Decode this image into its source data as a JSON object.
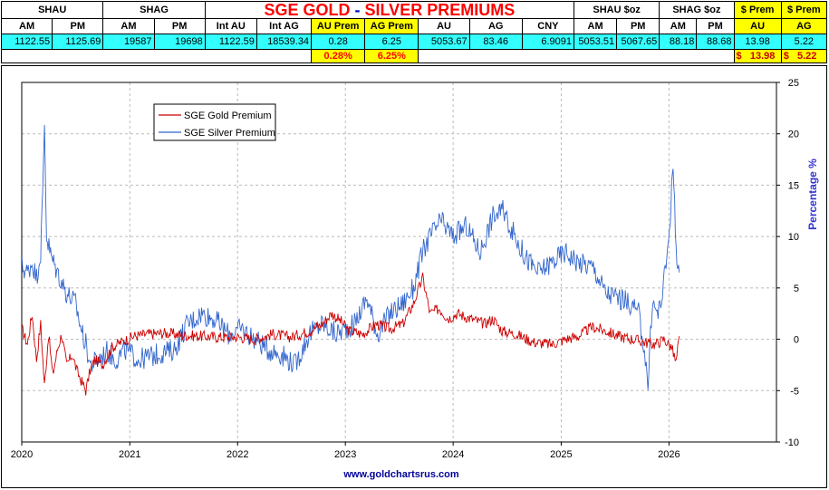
{
  "table": {
    "header1": {
      "shau": "SHAU",
      "shag": "SHAG",
      "title_gold": "SGE GOLD ",
      "title_dash": "-",
      "title_silver": " SILVER PREMIUMS",
      "shau_oz": "SHAU $oz",
      "shag_oz": "SHAG $oz",
      "prem1": "$ Prem",
      "prem2": "$ Prem"
    },
    "header2": [
      "AM",
      "PM",
      "AM",
      "PM",
      "Int AU",
      "Int AG",
      "AU Prem",
      "AG Prem",
      "AU",
      "AG",
      "CNY",
      "AM",
      "PM",
      "AM",
      "PM",
      "AU",
      "AG"
    ],
    "values": [
      "1122.55",
      "1125.69",
      "19587",
      "19698",
      "1122.59",
      "18539.34",
      "0.28",
      "6.25",
      "5053.67",
      "83.46",
      "6.9091",
      "5053.51",
      "5067.65",
      "88.18",
      "88.68",
      "13.98",
      "5.22"
    ],
    "pct_au": "0.28%",
    "pct_ag": "6.25%",
    "usd_au_sign": "$",
    "usd_au": "13.98",
    "usd_ag_sign": "$",
    "usd_ag": "5.22"
  },
  "chart_data": {
    "type": "line",
    "title": "",
    "xlabel": "",
    "ylabel": "Percentage %",
    "ylim": [
      -10,
      25
    ],
    "yticks": [
      -10,
      -5,
      0,
      5,
      10,
      15,
      20,
      25
    ],
    "xlim": [
      "2020-01-01",
      "2026-12-31"
    ],
    "xticks": [
      "2020",
      "2021",
      "2022",
      "2023",
      "2024",
      "2025",
      "2026"
    ],
    "grid": true,
    "y_axis_side": "right",
    "legend_position": "top-left",
    "footer": "www.goldchartsrus.com",
    "series": [
      {
        "name": "SGE Gold Premium",
        "color": "#cc0000",
        "points": [
          [
            "2020-01-02",
            1.0
          ],
          [
            "2020-01-20",
            -0.5
          ],
          [
            "2020-02-05",
            2.5
          ],
          [
            "2020-02-20",
            -2.0
          ],
          [
            "2020-03-05",
            1.5
          ],
          [
            "2020-03-18",
            -4.5
          ],
          [
            "2020-04-01",
            0.5
          ],
          [
            "2020-04-15",
            -3.5
          ],
          [
            "2020-05-01",
            -1.0
          ],
          [
            "2020-05-15",
            0.5
          ],
          [
            "2020-06-01",
            -2.5
          ],
          [
            "2020-06-20",
            -1.5
          ],
          [
            "2020-07-05",
            -3.0
          ],
          [
            "2020-07-20",
            -4.0
          ],
          [
            "2020-08-05",
            -5.0
          ],
          [
            "2020-08-20",
            -3.0
          ],
          [
            "2020-09-05",
            -2.0
          ],
          [
            "2020-10-01",
            -2.5
          ],
          [
            "2020-11-01",
            -0.8
          ],
          [
            "2020-12-01",
            -0.3
          ],
          [
            "2021-01-15",
            0.3
          ],
          [
            "2021-03-01",
            0.5
          ],
          [
            "2021-05-01",
            0.6
          ],
          [
            "2021-07-01",
            0.4
          ],
          [
            "2021-09-01",
            0.3
          ],
          [
            "2021-11-01",
            0.2
          ],
          [
            "2022-01-01",
            0.2
          ],
          [
            "2022-03-01",
            0.0
          ],
          [
            "2022-05-01",
            0.5
          ],
          [
            "2022-07-01",
            0.2
          ],
          [
            "2022-09-01",
            0.8
          ],
          [
            "2022-10-15",
            1.5
          ],
          [
            "2022-11-15",
            2.5
          ],
          [
            "2022-12-15",
            1.8
          ],
          [
            "2023-01-15",
            0.8
          ],
          [
            "2023-03-01",
            0.5
          ],
          [
            "2023-04-15",
            1.5
          ],
          [
            "2023-06-01",
            1.0
          ],
          [
            "2023-07-15",
            1.5
          ],
          [
            "2023-08-20",
            3.5
          ],
          [
            "2023-09-20",
            6.0
          ],
          [
            "2023-10-15",
            2.5
          ],
          [
            "2023-11-15",
            3.0
          ],
          [
            "2023-12-15",
            2.0
          ],
          [
            "2024-01-15",
            2.5
          ],
          [
            "2024-03-01",
            2.0
          ],
          [
            "2024-04-15",
            1.5
          ],
          [
            "2024-05-15",
            2.0
          ],
          [
            "2024-06-15",
            0.8
          ],
          [
            "2024-08-01",
            0.5
          ],
          [
            "2024-10-01",
            -0.3
          ],
          [
            "2024-12-01",
            -0.5
          ],
          [
            "2025-01-15",
            0.0
          ],
          [
            "2025-03-01",
            0.3
          ],
          [
            "2025-04-15",
            1.2
          ],
          [
            "2025-06-01",
            0.8
          ],
          [
            "2025-07-15",
            0.3
          ],
          [
            "2025-09-01",
            0.0
          ],
          [
            "2025-10-15",
            -0.3
          ],
          [
            "2025-11-15",
            -0.5
          ],
          [
            "2025-12-15",
            0.0
          ],
          [
            "2026-01-10",
            -0.8
          ],
          [
            "2026-01-25",
            -2.3
          ],
          [
            "2026-02-05",
            0.3
          ]
        ]
      },
      {
        "name": "SGE Silver Premium",
        "color": "#3366cc",
        "points": [
          [
            "2020-01-02",
            7.0
          ],
          [
            "2020-01-20",
            6.5
          ],
          [
            "2020-02-05",
            7.5
          ],
          [
            "2020-02-20",
            6.0
          ],
          [
            "2020-03-05",
            8.5
          ],
          [
            "2020-03-12",
            14.0
          ],
          [
            "2020-03-18",
            21.0
          ],
          [
            "2020-03-25",
            10.0
          ],
          [
            "2020-04-10",
            8.0
          ],
          [
            "2020-05-01",
            6.5
          ],
          [
            "2020-06-01",
            4.5
          ],
          [
            "2020-07-01",
            3.5
          ],
          [
            "2020-07-20",
            1.0
          ],
          [
            "2020-08-05",
            -0.5
          ],
          [
            "2020-08-20",
            -2.5
          ],
          [
            "2020-09-15",
            -2.0
          ],
          [
            "2020-10-15",
            -1.2
          ],
          [
            "2020-11-15",
            -2.0
          ],
          [
            "2020-12-15",
            -1.0
          ],
          [
            "2021-02-01",
            -2.0
          ],
          [
            "2021-04-01",
            -1.5
          ],
          [
            "2021-06-01",
            -1.0
          ],
          [
            "2021-07-15",
            1.5
          ],
          [
            "2021-09-01",
            2.5
          ],
          [
            "2021-10-15",
            2.0
          ],
          [
            "2021-12-01",
            0.5
          ],
          [
            "2022-01-15",
            1.0
          ],
          [
            "2022-03-01",
            0.0
          ],
          [
            "2022-04-15",
            -1.0
          ],
          [
            "2022-06-01",
            -1.5
          ],
          [
            "2022-07-15",
            -2.5
          ],
          [
            "2022-09-01",
            0.5
          ],
          [
            "2022-10-15",
            1.5
          ],
          [
            "2022-12-01",
            0.5
          ],
          [
            "2023-02-01",
            1.5
          ],
          [
            "2023-03-15",
            4.0
          ],
          [
            "2023-04-20",
            0.5
          ],
          [
            "2023-06-01",
            2.5
          ],
          [
            "2023-07-15",
            3.5
          ],
          [
            "2023-08-20",
            5.0
          ],
          [
            "2023-09-20",
            8.5
          ],
          [
            "2023-10-15",
            10.0
          ],
          [
            "2023-11-20",
            11.5
          ],
          [
            "2024-01-01",
            10.0
          ],
          [
            "2024-02-15",
            11.0
          ],
          [
            "2024-04-01",
            8.5
          ],
          [
            "2024-05-15",
            12.0
          ],
          [
            "2024-06-20",
            12.5
          ],
          [
            "2024-07-20",
            10.5
          ],
          [
            "2024-09-01",
            8.0
          ],
          [
            "2024-10-15",
            6.5
          ],
          [
            "2024-12-01",
            7.5
          ],
          [
            "2025-01-15",
            8.5
          ],
          [
            "2025-03-01",
            7.5
          ],
          [
            "2025-04-20",
            7.0
          ],
          [
            "2025-06-01",
            4.5
          ],
          [
            "2025-07-15",
            4.0
          ],
          [
            "2025-08-20",
            3.5
          ],
          [
            "2025-09-20",
            2.5
          ],
          [
            "2025-10-10",
            -1.0
          ],
          [
            "2025-10-22",
            -4.5
          ],
          [
            "2025-11-05",
            3.5
          ],
          [
            "2025-11-25",
            2.5
          ],
          [
            "2025-12-10",
            4.5
          ],
          [
            "2025-12-25",
            8.0
          ],
          [
            "2026-01-05",
            12.0
          ],
          [
            "2026-01-15",
            17.0
          ],
          [
            "2026-01-25",
            9.0
          ],
          [
            "2026-02-05",
            6.5
          ]
        ]
      }
    ]
  }
}
